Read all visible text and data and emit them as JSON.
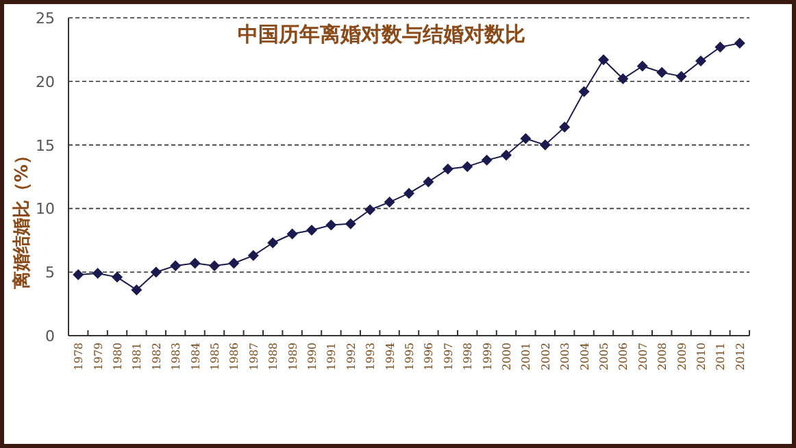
{
  "chart_data": {
    "type": "line",
    "title": "中国历年离婚对数与结婚对数比",
    "ylabel": "离婚结婚比（%）",
    "categories": [
      "1978",
      "1979",
      "1980",
      "1981",
      "1982",
      "1983",
      "1984",
      "1985",
      "1986",
      "1987",
      "1988",
      "1989",
      "1990",
      "1991",
      "1992",
      "1993",
      "1994",
      "1995",
      "1996",
      "1997",
      "1998",
      "1999",
      "2000",
      "2001",
      "2002",
      "2003",
      "2004",
      "2005",
      "2006",
      "2007",
      "2008",
      "2009",
      "2010",
      "2011",
      "2012"
    ],
    "values": [
      4.8,
      4.9,
      4.6,
      3.6,
      5.0,
      5.5,
      5.7,
      5.5,
      5.7,
      6.3,
      7.3,
      8.0,
      8.3,
      8.7,
      8.8,
      9.9,
      10.5,
      11.2,
      12.1,
      13.1,
      13.3,
      13.8,
      14.2,
      15.5,
      15.0,
      16.4,
      19.2,
      21.7,
      20.2,
      21.2,
      20.7,
      20.4,
      21.6,
      22.7,
      23.0
    ],
    "color": "#1a1a4e",
    "ylim": [
      0,
      25
    ],
    "yticks": [
      0,
      5,
      10,
      15,
      20,
      25
    ],
    "grid": "y",
    "marker": "diamond",
    "line_style": "solid"
  }
}
